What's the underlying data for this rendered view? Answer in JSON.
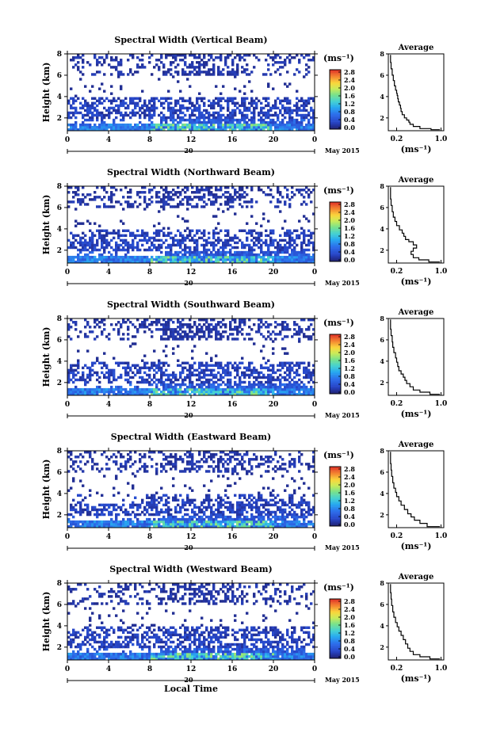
{
  "chart_data": [
    {
      "type": "heatmap",
      "title": "Spectral Width (Vertical Beam)",
      "ylabel": "Height (km)",
      "x_ticks": [
        "0",
        "4",
        "8",
        "12",
        "16",
        "20",
        "0"
      ],
      "y_ticks": [
        "2",
        "4",
        "6",
        "8"
      ],
      "xlim": [
        0,
        24
      ],
      "ylim": [
        0.8,
        8
      ],
      "date_marker": "20",
      "date_label": "May 2015",
      "colorbar": {
        "unit": "(ms⁻¹)",
        "ticks": [
          "0.0",
          "0.4",
          "0.8",
          "1.2",
          "1.6",
          "2.0",
          "2.4",
          "2.8"
        ],
        "range": [
          0,
          3.0
        ]
      },
      "average": {
        "title": "Average",
        "xlabel": "(ms⁻¹)",
        "x_ticks": [
          "0.2",
          "1.0"
        ],
        "y_ticks": [
          "2",
          "4",
          "6",
          "8"
        ],
        "profile": [
          [
            0.98,
            0.9
          ],
          [
            0.82,
            1.0
          ],
          [
            0.62,
            1.2
          ],
          [
            0.5,
            1.4
          ],
          [
            0.44,
            1.6
          ],
          [
            0.42,
            1.8
          ],
          [
            0.38,
            2.0
          ],
          [
            0.34,
            2.3
          ],
          [
            0.3,
            2.6
          ],
          [
            0.28,
            2.9
          ],
          [
            0.27,
            3.2
          ],
          [
            0.25,
            3.5
          ],
          [
            0.23,
            3.8
          ],
          [
            0.22,
            4.1
          ],
          [
            0.21,
            4.3
          ],
          [
            0.2,
            4.6
          ],
          [
            0.18,
            5.0
          ],
          [
            0.16,
            5.5
          ],
          [
            0.14,
            6.0
          ],
          [
            0.12,
            6.6
          ],
          [
            0.1,
            7.2
          ],
          [
            0.09,
            7.9
          ]
        ]
      }
    },
    {
      "type": "heatmap",
      "title": "Spectral Width (Northward Beam)",
      "ylabel": "Height (km)",
      "x_ticks": [
        "0",
        "4",
        "8",
        "12",
        "16",
        "20",
        "0"
      ],
      "y_ticks": [
        "2",
        "4",
        "6",
        "8"
      ],
      "xlim": [
        0,
        24
      ],
      "ylim": [
        0.8,
        8
      ],
      "date_marker": "20",
      "date_label": "May 2015",
      "colorbar": {
        "unit": "(ms⁻¹)",
        "ticks": [
          "0.0",
          "0.4",
          "0.8",
          "1.2",
          "1.6",
          "2.0",
          "2.4",
          "2.8"
        ],
        "range": [
          0,
          3.0
        ]
      },
      "average": {
        "title": "Average",
        "xlabel": "(ms⁻¹)",
        "x_ticks": [
          "0.2",
          "1.0"
        ],
        "y_ticks": [
          "2",
          "4",
          "6",
          "8"
        ],
        "profile": [
          [
            0.98,
            0.9
          ],
          [
            0.78,
            1.1
          ],
          [
            0.6,
            1.3
          ],
          [
            0.5,
            1.6
          ],
          [
            0.46,
            1.9
          ],
          [
            0.5,
            2.2
          ],
          [
            0.56,
            2.5
          ],
          [
            0.5,
            2.8
          ],
          [
            0.42,
            3.0
          ],
          [
            0.36,
            3.3
          ],
          [
            0.33,
            3.6
          ],
          [
            0.3,
            3.9
          ],
          [
            0.25,
            4.3
          ],
          [
            0.2,
            4.7
          ],
          [
            0.17,
            5.1
          ],
          [
            0.14,
            5.6
          ],
          [
            0.12,
            6.2
          ],
          [
            0.1,
            6.8
          ],
          [
            0.09,
            7.4
          ],
          [
            0.09,
            7.9
          ]
        ]
      }
    },
    {
      "type": "heatmap",
      "title": "Spectral Width (Southward Beam)",
      "ylabel": "Height (km)",
      "x_ticks": [
        "0",
        "4",
        "8",
        "12",
        "16",
        "20",
        "0"
      ],
      "y_ticks": [
        "2",
        "4",
        "6",
        "8"
      ],
      "xlim": [
        0,
        24
      ],
      "ylim": [
        0.8,
        8
      ],
      "date_marker": "20",
      "date_label": "May 2015",
      "colorbar": {
        "unit": "(ms⁻¹)",
        "ticks": [
          "0.0",
          "0.4",
          "0.8",
          "1.2",
          "1.6",
          "2.0",
          "2.4",
          "2.8"
        ],
        "range": [
          0,
          3.0
        ]
      },
      "average": {
        "title": "Average",
        "xlabel": "(ms⁻¹)",
        "x_ticks": [
          "0.2",
          "1.0"
        ],
        "y_ticks": [
          "2",
          "4",
          "6",
          "8"
        ],
        "profile": [
          [
            0.98,
            0.9
          ],
          [
            0.8,
            1.1
          ],
          [
            0.62,
            1.3
          ],
          [
            0.5,
            1.6
          ],
          [
            0.44,
            1.9
          ],
          [
            0.38,
            2.2
          ],
          [
            0.35,
            2.5
          ],
          [
            0.32,
            2.8
          ],
          [
            0.28,
            3.1
          ],
          [
            0.24,
            3.5
          ],
          [
            0.22,
            3.9
          ],
          [
            0.2,
            4.3
          ],
          [
            0.18,
            4.8
          ],
          [
            0.15,
            5.3
          ],
          [
            0.13,
            5.8
          ],
          [
            0.12,
            6.4
          ],
          [
            0.1,
            7.0
          ],
          [
            0.09,
            7.6
          ],
          [
            0.09,
            7.9
          ]
        ]
      }
    },
    {
      "type": "heatmap",
      "title": "Spectral Width (Eastward Beam)",
      "ylabel": "Height (km)",
      "x_ticks": [
        "0",
        "4",
        "8",
        "12",
        "16",
        "20",
        "0"
      ],
      "y_ticks": [
        "2",
        "4",
        "6",
        "8"
      ],
      "xlim": [
        0,
        24
      ],
      "ylim": [
        0.8,
        8
      ],
      "date_marker": "20",
      "date_label": "May 2015",
      "colorbar": {
        "unit": "(ms⁻¹)",
        "ticks": [
          "0.0",
          "0.4",
          "0.8",
          "1.2",
          "1.6",
          "2.0",
          "2.4",
          "2.8"
        ],
        "range": [
          0,
          3.0
        ]
      },
      "average": {
        "title": "Average",
        "xlabel": "(ms⁻¹)",
        "x_ticks": [
          "0.2",
          "1.0"
        ],
        "y_ticks": [
          "2",
          "4",
          "6",
          "8"
        ],
        "profile": [
          [
            0.98,
            0.9
          ],
          [
            0.75,
            1.2
          ],
          [
            0.62,
            1.5
          ],
          [
            0.52,
            1.8
          ],
          [
            0.46,
            2.1
          ],
          [
            0.4,
            2.5
          ],
          [
            0.34,
            2.9
          ],
          [
            0.28,
            3.3
          ],
          [
            0.24,
            3.7
          ],
          [
            0.2,
            4.1
          ],
          [
            0.18,
            4.5
          ],
          [
            0.15,
            5.0
          ],
          [
            0.13,
            5.6
          ],
          [
            0.11,
            6.2
          ],
          [
            0.1,
            6.8
          ],
          [
            0.09,
            7.4
          ],
          [
            0.09,
            7.9
          ]
        ]
      }
    },
    {
      "type": "heatmap",
      "title": "Spectral Width (Westward Beam)",
      "ylabel": "Height (km)",
      "x_ticks": [
        "0",
        "4",
        "8",
        "12",
        "16",
        "20",
        "0"
      ],
      "y_ticks": [
        "2",
        "4",
        "6",
        "8"
      ],
      "xlim": [
        0,
        24
      ],
      "ylim": [
        0.8,
        8
      ],
      "date_marker": "20",
      "date_label": "May 2015",
      "xlabel": "Local Time",
      "colorbar": {
        "unit": "(ms⁻¹)",
        "ticks": [
          "0.0",
          "0.4",
          "0.8",
          "1.2",
          "1.6",
          "2.0",
          "2.4",
          "2.8"
        ],
        "range": [
          0,
          3.0
        ]
      },
      "average": {
        "title": "Average",
        "xlabel": "(ms⁻¹)",
        "x_ticks": [
          "0.2",
          "1.0"
        ],
        "y_ticks": [
          "2",
          "4",
          "6",
          "8"
        ],
        "profile": [
          [
            0.98,
            0.9
          ],
          [
            0.8,
            1.1
          ],
          [
            0.62,
            1.3
          ],
          [
            0.5,
            1.6
          ],
          [
            0.44,
            1.9
          ],
          [
            0.4,
            2.3
          ],
          [
            0.36,
            2.7
          ],
          [
            0.32,
            3.1
          ],
          [
            0.28,
            3.5
          ],
          [
            0.24,
            3.9
          ],
          [
            0.21,
            4.3
          ],
          [
            0.18,
            4.8
          ],
          [
            0.15,
            5.3
          ],
          [
            0.13,
            5.9
          ],
          [
            0.11,
            6.5
          ],
          [
            0.1,
            7.1
          ],
          [
            0.09,
            7.7
          ],
          [
            0.09,
            7.9
          ]
        ]
      }
    }
  ],
  "colors": {
    "low": "#1c2f8c",
    "mid": "#3a66d8",
    "high": "#e8402a"
  }
}
